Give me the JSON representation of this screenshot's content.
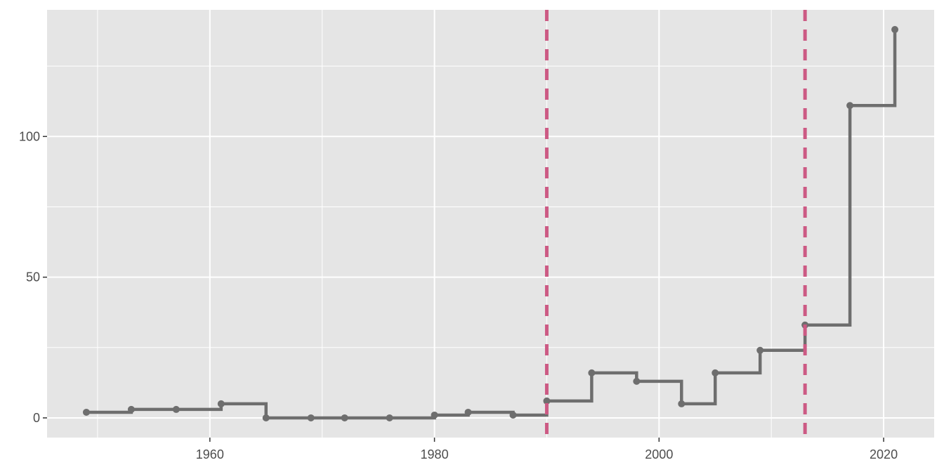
{
  "chart_data": {
    "type": "line",
    "subtype": "step",
    "title": "",
    "xlabel": "",
    "ylabel": "",
    "xlim": [
      1945.5,
      2024.5
    ],
    "ylim": [
      -7,
      145
    ],
    "x_ticks": [
      1960,
      1980,
      2000,
      2020
    ],
    "x_tick_labels": [
      "1960",
      "1980",
      "2000",
      "2020"
    ],
    "x_minor_ticks": [
      1950,
      1970,
      1990,
      2010
    ],
    "y_ticks": [
      0,
      50,
      100
    ],
    "y_tick_labels": [
      "0",
      "50",
      "100"
    ],
    "y_minor_ticks": [
      25,
      75,
      125
    ],
    "grid": true,
    "background": "#e5e5e5",
    "series": [
      {
        "color": "#6e6e6e",
        "x": [
          1949,
          1953,
          1957,
          1961,
          1965,
          1969,
          1972,
          1976,
          1980,
          1983,
          1987,
          1990,
          1994,
          1998,
          2002,
          2005,
          2009,
          2013,
          2017,
          2021
        ],
        "y": [
          2,
          3,
          3,
          5,
          0,
          0,
          0,
          0,
          1,
          2,
          1,
          6,
          16,
          13,
          5,
          16,
          24,
          33,
          111,
          138
        ]
      }
    ],
    "vlines": [
      {
        "x": 1990,
        "color": "#cc5a84",
        "style": "dashed"
      },
      {
        "x": 2013,
        "color": "#cc5a84",
        "style": "dashed"
      }
    ]
  }
}
